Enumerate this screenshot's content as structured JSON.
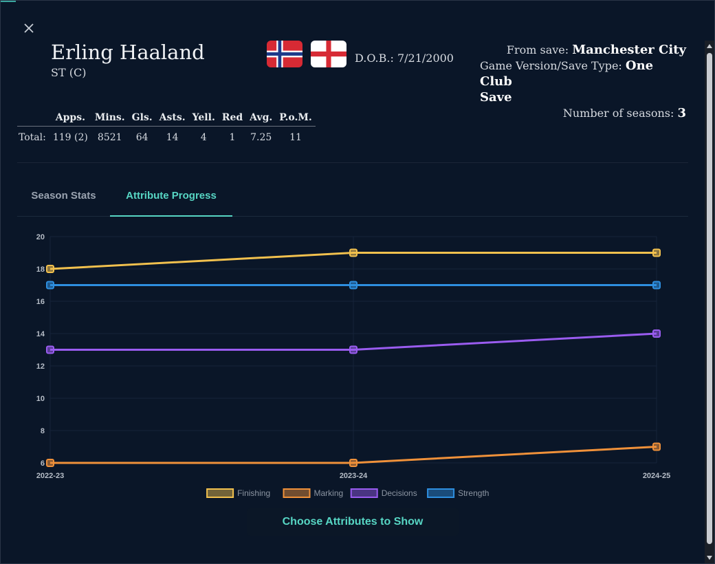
{
  "player": {
    "name": "Erling Haaland",
    "position": "ST (C)",
    "dob_label": "D.O.B.:",
    "dob": "7/21/2000",
    "flags": [
      "norway-flag",
      "england-flag"
    ]
  },
  "save_info": {
    "from_save_label": "From save:",
    "from_save": "Manchester City",
    "version_label": "Game Version/Save Type:",
    "version_value_1": "One Club",
    "version_value_2": "Save",
    "seasons_label": "Number of seasons:",
    "seasons": "3"
  },
  "totals": {
    "headers": [
      "Apps.",
      "Mins.",
      "Gls.",
      "Asts.",
      "Yell.",
      "Red",
      "Avg.",
      "P.o.M."
    ],
    "row_label": "Total:",
    "values": [
      "119 (2)",
      "8521",
      "64",
      "14",
      "4",
      "1",
      "7.25",
      "11"
    ]
  },
  "tabs": [
    {
      "label": "Season Stats",
      "active": false
    },
    {
      "label": "Attribute Progress",
      "active": true
    }
  ],
  "chart_data": {
    "type": "line",
    "x": [
      "2022-23",
      "2023-24",
      "2024-25"
    ],
    "ylim": [
      6,
      20
    ],
    "yticks": [
      6,
      8,
      10,
      12,
      14,
      16,
      18,
      20
    ],
    "grid": true,
    "legend": "bottom",
    "series": [
      {
        "name": "Finishing",
        "values": [
          18,
          19,
          19
        ],
        "color": "#f2c14e"
      },
      {
        "name": "Marking",
        "values": [
          6,
          6,
          7
        ],
        "color": "#f0913a"
      },
      {
        "name": "Decisions",
        "values": [
          13,
          13,
          14
        ],
        "color": "#9a5cf0"
      },
      {
        "name": "Strength",
        "values": [
          17,
          17,
          17
        ],
        "color": "#2e8fe0"
      }
    ]
  },
  "choose_button": "Choose Attributes to Show",
  "colors": {
    "accent": "#57d6c4",
    "background": "#0a1628"
  }
}
